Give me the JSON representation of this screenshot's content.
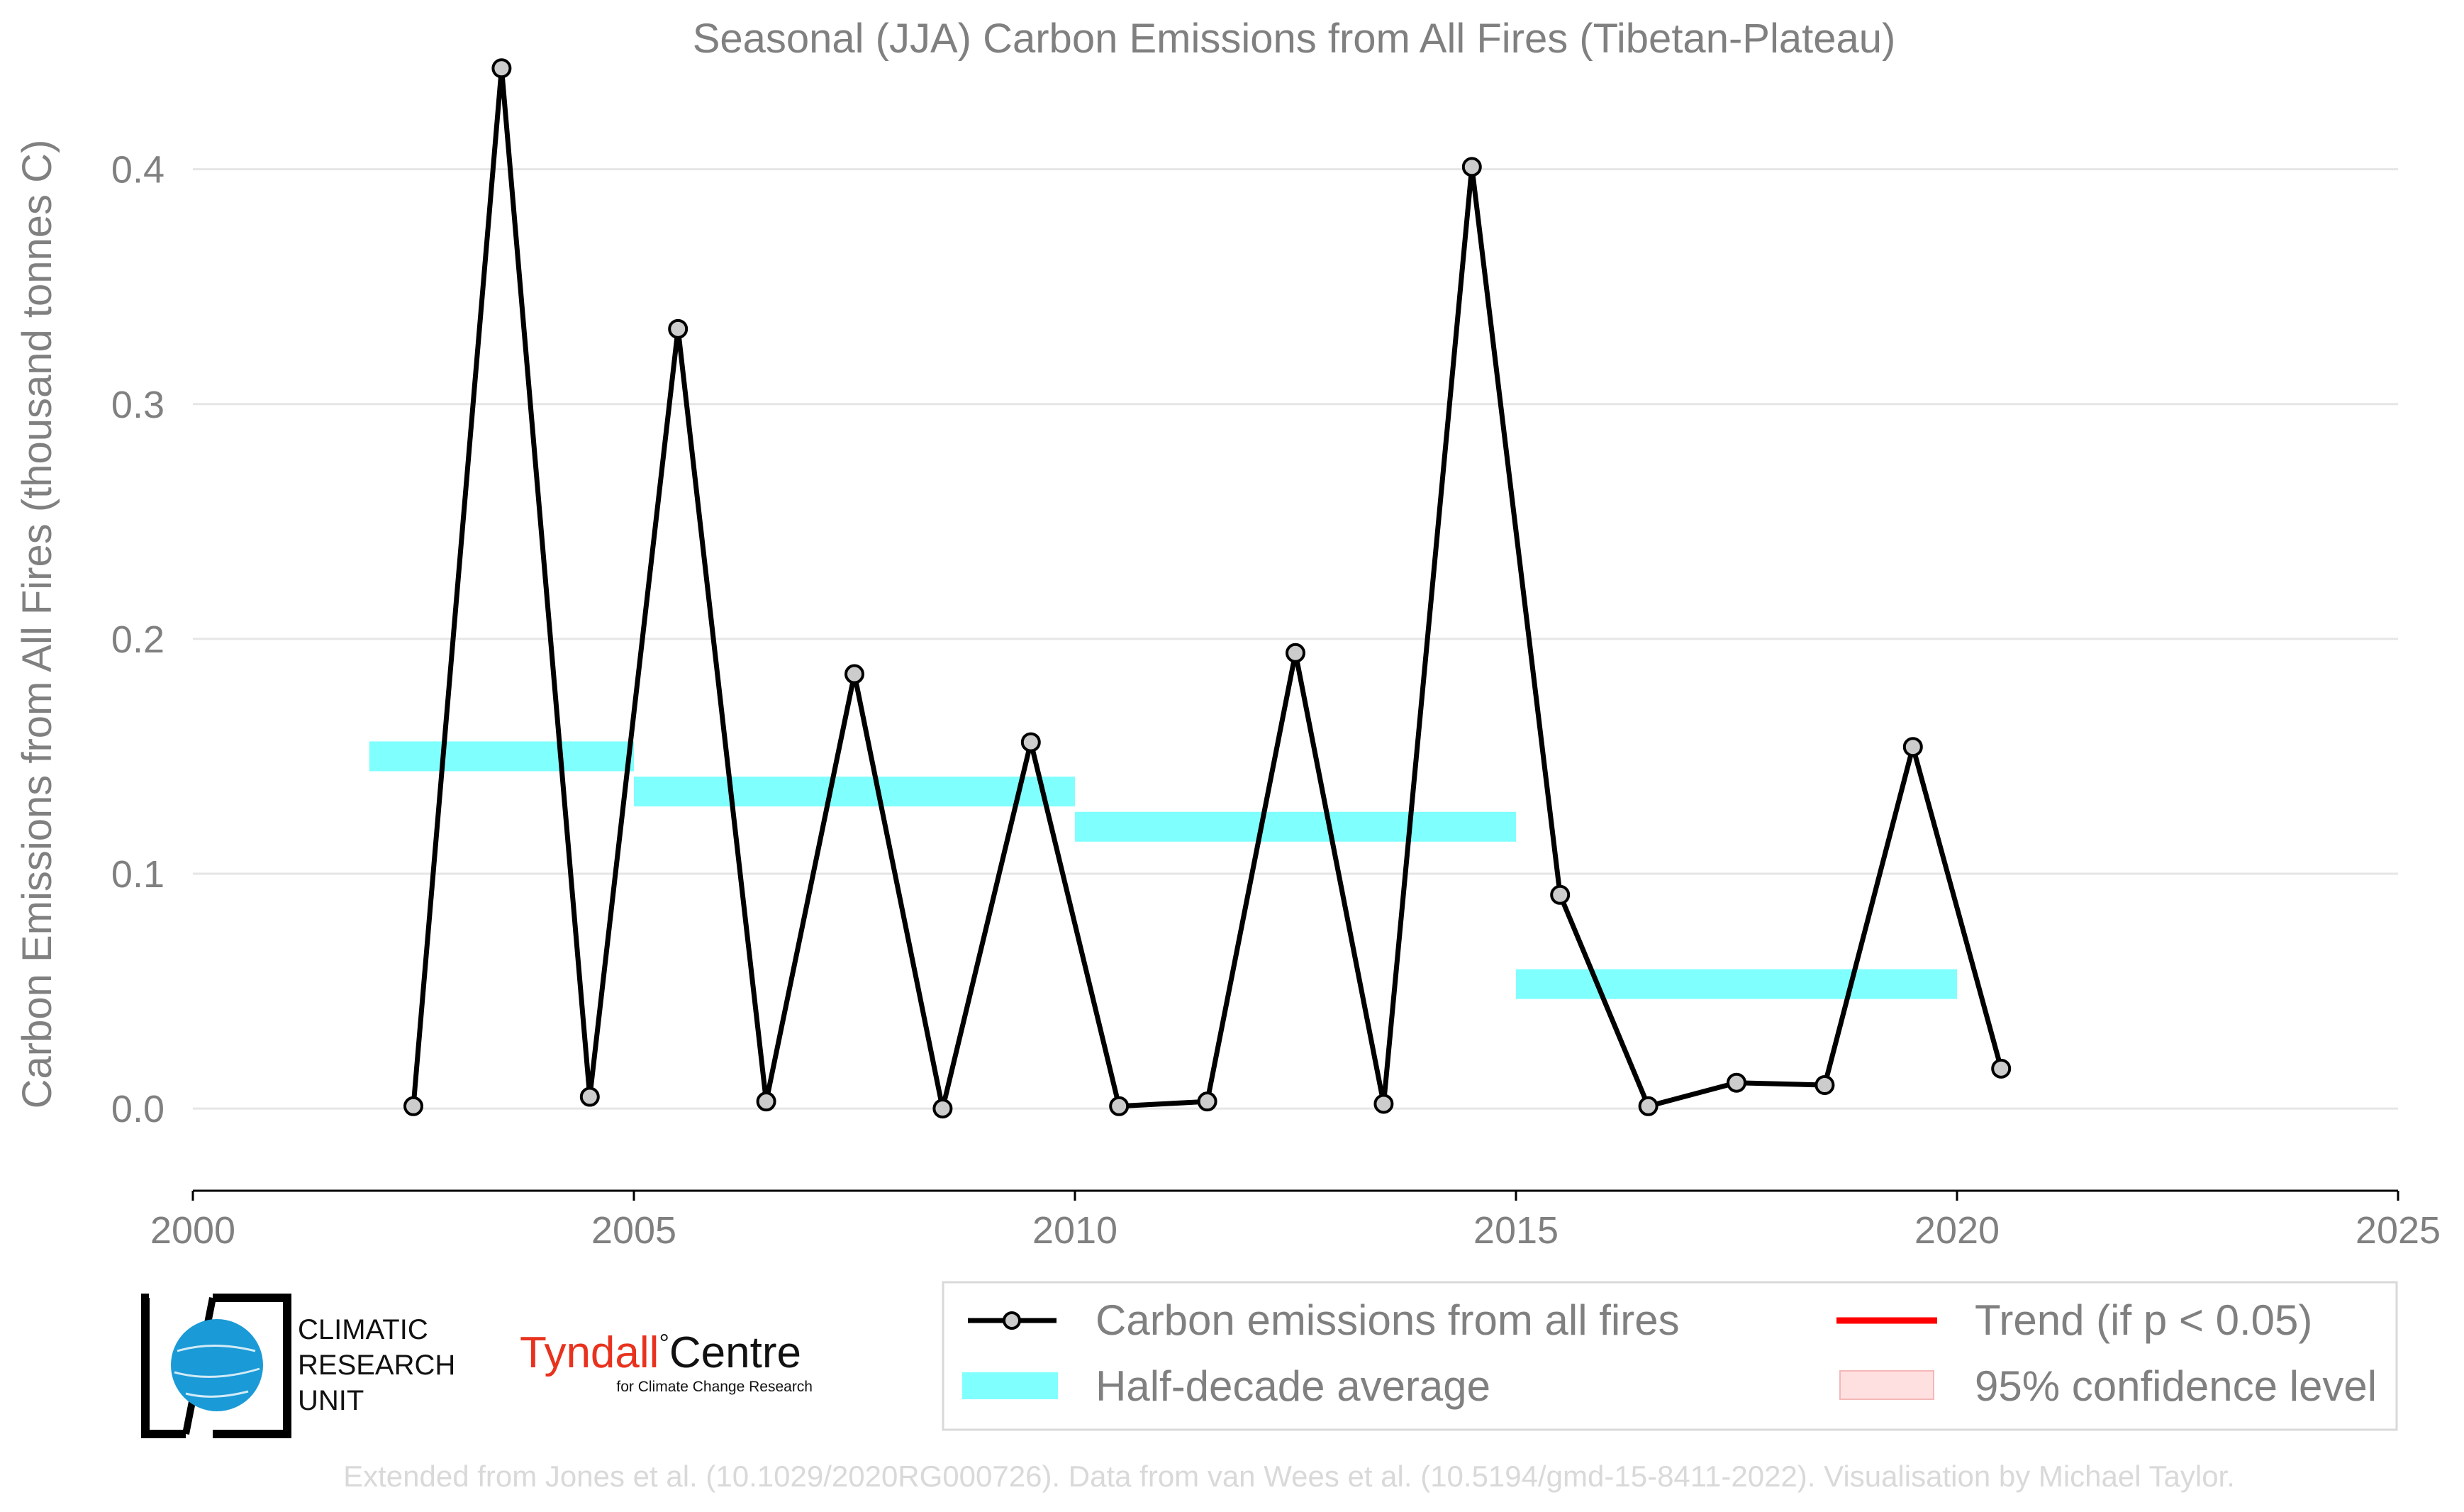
{
  "chart_data": {
    "type": "line",
    "title": "Seasonal (JJA) Carbon Emissions from All Fires (Tibetan-Plateau)",
    "xlabel": "",
    "ylabel": "Carbon Emissions from All Fires (thousand tonnes C)",
    "xlim": [
      2000,
      2025
    ],
    "ylim": [
      -0.035,
      0.46
    ],
    "x_ticks": [
      "2000",
      "2005",
      "2010",
      "2015",
      "2020",
      "2025"
    ],
    "y_ticks": [
      "0.0",
      "0.1",
      "0.2",
      "0.3",
      "0.4"
    ],
    "grid": "horizontal",
    "series": [
      {
        "name": "Carbon emissions from all fires",
        "color": "#000000",
        "marker_fill": "#cccccc",
        "x": [
          2002.5,
          2003.5,
          2004.5,
          2005.5,
          2006.5,
          2007.5,
          2008.5,
          2009.5,
          2010.5,
          2011.5,
          2012.5,
          2013.5,
          2014.5,
          2015.5,
          2016.5,
          2017.5,
          2018.5,
          2019.5,
          2020.5
        ],
        "values": [
          0.001,
          0.443,
          0.005,
          0.332,
          0.003,
          0.185,
          0.0,
          0.156,
          0.001,
          0.003,
          0.194,
          0.002,
          0.401,
          0.091,
          0.001,
          0.011,
          0.01,
          0.154,
          0.017
        ]
      },
      {
        "name": "Half-decade average",
        "color": "#80ffff",
        "segments": [
          {
            "x0": 2002,
            "x1": 2005,
            "value": 0.15
          },
          {
            "x0": 2005,
            "x1": 2010,
            "value": 0.135
          },
          {
            "x0": 2010,
            "x1": 2015,
            "value": 0.12
          },
          {
            "x0": 2015,
            "x1": 2020,
            "value": 0.053
          }
        ]
      }
    ],
    "legend": {
      "placement": "bottom-right",
      "items": [
        {
          "label": "Carbon emissions from all fires",
          "color": "#000000",
          "style": "line-marker"
        },
        {
          "label": "Trend (if p < 0.05)",
          "color": "#ff0000",
          "style": "line"
        },
        {
          "label": "Half-decade average",
          "color": "#80ffff",
          "style": "patch"
        },
        {
          "label": "95% confidence level",
          "color": "#ffe0e0",
          "style": "patch"
        }
      ]
    }
  },
  "logos": {
    "cru_lines": [
      "CLIMATIC",
      "RESEARCH",
      "UNIT"
    ],
    "tyndall_main": "Tyndall",
    "tyndall_degree": "°",
    "tyndall_centre": "Centre",
    "tyndall_sub": "for Climate Change Research",
    "tyndall_color": "#e8321e"
  },
  "credit": "Extended from Jones et al. (10.1029/2020RG000726). Data from van Wees et al. (10.5194/gmd-15-8411-2022). Visualisation by Michael Taylor."
}
